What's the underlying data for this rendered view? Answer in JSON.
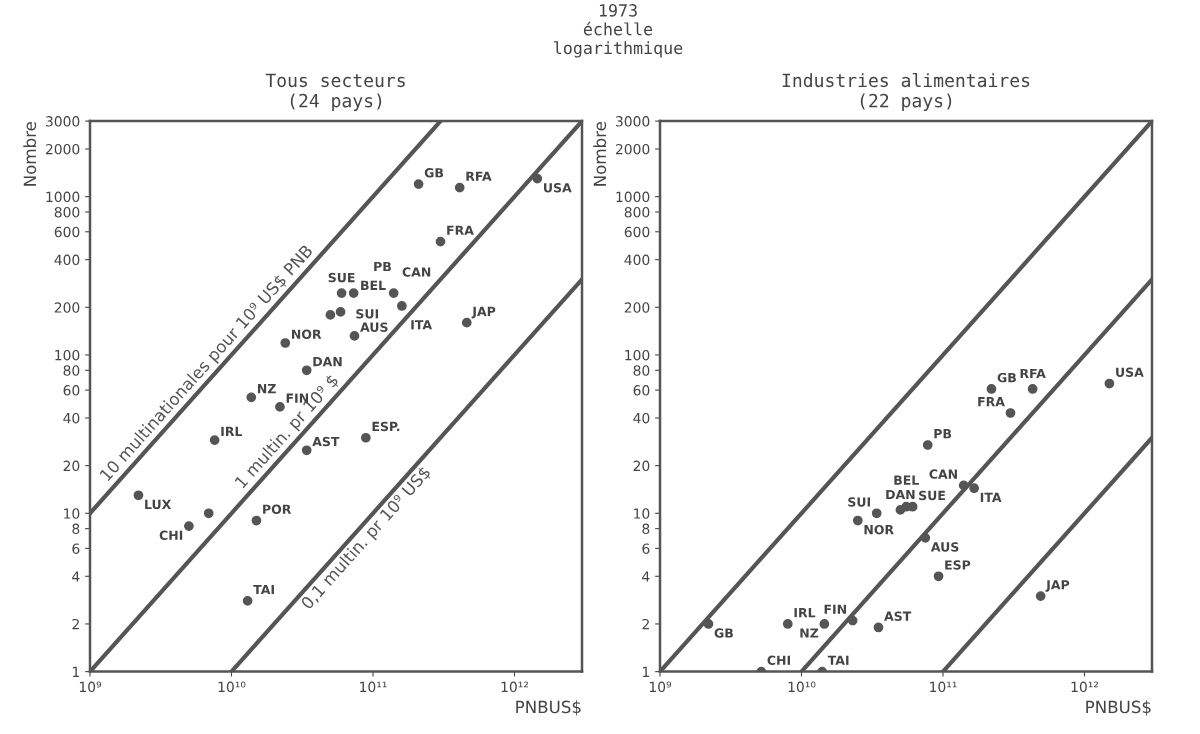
{
  "chart_data": [
    {
      "type": "scatter",
      "title": "Tous secteurs\n(24 pays)",
      "xlabel": "PNBUS$",
      "ylabel": "Nombre",
      "log": "xy",
      "grid": false,
      "legend": false,
      "xlim": [
        1000000000,
        3000000000000
      ],
      "ylim": [
        1,
        3000
      ],
      "xticks": [
        {
          "value": 1000000000,
          "label": "10⁹"
        },
        {
          "value": 10000000000,
          "label": "10¹⁰"
        },
        {
          "value": 100000000000,
          "label": "10¹¹"
        },
        {
          "value": 1000000000000,
          "label": "10¹²"
        }
      ],
      "yticks": [
        1,
        2,
        4,
        6,
        8,
        10,
        20,
        40,
        60,
        80,
        100,
        200,
        400,
        600,
        800,
        1000,
        2000,
        3000
      ],
      "series": [
        {
          "type": "scatter",
          "marker": "circle",
          "color": "#555555",
          "x": [
            2200000000,
            5000000000,
            6900000000,
            7600000000,
            13800000000,
            15000000000,
            13000000000,
            22000000000,
            24000000000,
            34000000000,
            34000000000,
            89000000000,
            50000000000,
            59000000000,
            60000000000,
            73000000000,
            74000000000,
            140000000000,
            160000000000,
            210000000000,
            410000000000,
            300000000000,
            460000000000,
            1450000000000
          ],
          "values": [
            13,
            8.3,
            10,
            29,
            54,
            9,
            2.8,
            47,
            119,
            80,
            25,
            30,
            179,
            187,
            246,
            246,
            132,
            246,
            204,
            1200,
            1140,
            520,
            160,
            1300
          ]
        },
        {
          "type": "line",
          "name": "10 multinationales pour 10⁹ US$ PNB",
          "color": "#555555",
          "x": [
            1000000000,
            10000000000,
            100000000000,
            300000000000
          ],
          "values": [
            10,
            100,
            1000,
            3000
          ]
        },
        {
          "type": "line",
          "name": "1 multin. pr 10⁹ $",
          "color": "#555555",
          "x": [
            1000000000,
            10000000000,
            100000000000,
            1000000000000,
            3000000000000
          ],
          "values": [
            1,
            10,
            100,
            1000,
            3000
          ]
        },
        {
          "type": "line",
          "name": "0,1 multin. pr 10⁹ US$",
          "color": "#555555",
          "x": [
            10000000000,
            100000000000,
            1000000000000,
            3000000000000
          ],
          "values": [
            1,
            10,
            100,
            300
          ]
        }
      ],
      "annotations": [
        "1973\néchelle\nlogarithmique",
        {
          "text": "LUX",
          "x": 2200000000,
          "y": 13
        },
        {
          "text": "CHI",
          "x": 5000000000,
          "y": 8.3
        },
        {
          "text": "IRL",
          "x": 7600000000,
          "y": 29
        },
        {
          "text": "NZ",
          "x": 13800000000,
          "y": 54
        },
        {
          "text": "POR",
          "x": 15000000000,
          "y": 9
        },
        {
          "text": "TAI",
          "x": 13000000000,
          "y": 2.8
        },
        {
          "text": "FIN",
          "x": 22000000000,
          "y": 47
        },
        {
          "text": "NOR",
          "x": 24000000000,
          "y": 119
        },
        {
          "text": "DAN",
          "x": 34000000000,
          "y": 80
        },
        {
          "text": "AST",
          "x": 34000000000,
          "y": 25
        },
        {
          "text": "ESP.",
          "x": 89000000000,
          "y": 30
        },
        {
          "text": "SUI",
          "x": 50000000000,
          "y": 179
        },
        {
          "text": "BEL",
          "x": 59000000000,
          "y": 187
        },
        {
          "text": "SUE",
          "x": 60000000000,
          "y": 246
        },
        {
          "text": "PB",
          "x": 73000000000,
          "y": 246
        },
        {
          "text": "AUS",
          "x": 74000000000,
          "y": 132
        },
        {
          "text": "CAN",
          "x": 140000000000,
          "y": 246
        },
        {
          "text": "ITA",
          "x": 160000000000,
          "y": 204
        },
        {
          "text": "GB",
          "x": 210000000000,
          "y": 1200
        },
        {
          "text": "RFA",
          "x": 410000000000,
          "y": 1140
        },
        {
          "text": "FRA",
          "x": 300000000000,
          "y": 520
        },
        {
          "text": "JAP",
          "x": 460000000000,
          "y": 160
        },
        {
          "text": "USA",
          "x": 1450000000000,
          "y": 1300
        }
      ]
    },
    {
      "type": "scatter",
      "title": "Industries alimentaires\n(22 pays)",
      "xlabel": "PNBUS$",
      "ylabel": "Nombre",
      "log": "xy",
      "grid": false,
      "legend": false,
      "xlim": [
        1000000000,
        3000000000000
      ],
      "ylim": [
        1,
        3000
      ],
      "xticks": [
        {
          "value": 1000000000,
          "label": "10⁹"
        },
        {
          "value": 10000000000,
          "label": "10¹⁰"
        },
        {
          "value": 100000000000,
          "label": "10¹¹"
        },
        {
          "value": 1000000000000,
          "label": "10¹²"
        }
      ],
      "yticks": [
        1,
        2,
        4,
        6,
        8,
        10,
        20,
        40,
        60,
        80,
        100,
        200,
        400,
        600,
        800,
        1000,
        2000,
        3000
      ],
      "series": [
        {
          "type": "scatter",
          "marker": "circle",
          "color": "#555555",
          "x": [
            2200000000,
            8000000000,
            14500000000,
            23000000000,
            35000000000,
            5200000000,
            14000000000,
            25000000000,
            34000000000,
            50000000000,
            55000000000,
            61000000000,
            75000000000,
            93000000000,
            140000000000,
            166000000000,
            78000000000,
            300000000000,
            220000000000,
            430000000000,
            1500000000000,
            490000000000
          ],
          "values": [
            2,
            2,
            2,
            2.1,
            1.9,
            1,
            1,
            9,
            10,
            10.5,
            11,
            11,
            7,
            4,
            15,
            14.4,
            27,
            43,
            61,
            61,
            66,
            3
          ]
        },
        {
          "type": "line",
          "color": "#555555",
          "x": [
            1000000000,
            3000000000000
          ],
          "values": [
            1,
            3000
          ]
        },
        {
          "type": "line",
          "color": "#555555",
          "x": [
            10000000000,
            3000000000000
          ],
          "values": [
            1,
            300
          ]
        },
        {
          "type": "line",
          "color": "#555555",
          "x": [
            100000000000,
            3000000000000
          ],
          "values": [
            1,
            30
          ]
        }
      ],
      "annotations": [
        {
          "text": "GB",
          "x": 2200000000,
          "y": 2
        },
        {
          "text": "IRL",
          "x": 8000000000,
          "y": 2
        },
        {
          "text": "NZ",
          "x": 14500000000,
          "y": 2
        },
        {
          "text": "FIN",
          "x": 23000000000,
          "y": 2.1
        },
        {
          "text": "AST",
          "x": 35000000000,
          "y": 1.9
        },
        {
          "text": "CHI",
          "x": 5200000000,
          "y": 1
        },
        {
          "text": "TAI",
          "x": 14000000000,
          "y": 1
        },
        {
          "text": "NOR",
          "x": 25000000000,
          "y": 9
        },
        {
          "text": "SUI",
          "x": 34000000000,
          "y": 10
        },
        {
          "text": "DAN",
          "x": 50000000000,
          "y": 10.5
        },
        {
          "text": "BEL",
          "x": 55000000000,
          "y": 11
        },
        {
          "text": "SUE",
          "x": 61000000000,
          "y": 11
        },
        {
          "text": "AUS",
          "x": 75000000000,
          "y": 7
        },
        {
          "text": "ESP",
          "x": 93000000000,
          "y": 4
        },
        {
          "text": "CAN",
          "x": 140000000000,
          "y": 15
        },
        {
          "text": "ITA",
          "x": 166000000000,
          "y": 14.4
        },
        {
          "text": "PB",
          "x": 78000000000,
          "y": 27
        },
        {
          "text": "FRA",
          "x": 300000000000,
          "y": 43
        },
        {
          "text": "GB",
          "x": 220000000000,
          "y": 61
        },
        {
          "text": "RFA",
          "x": 430000000000,
          "y": 61
        },
        {
          "text": "USA",
          "x": 1500000000000,
          "y": 66
        },
        {
          "text": "JAP",
          "x": 490000000000,
          "y": 3
        }
      ]
    }
  ]
}
